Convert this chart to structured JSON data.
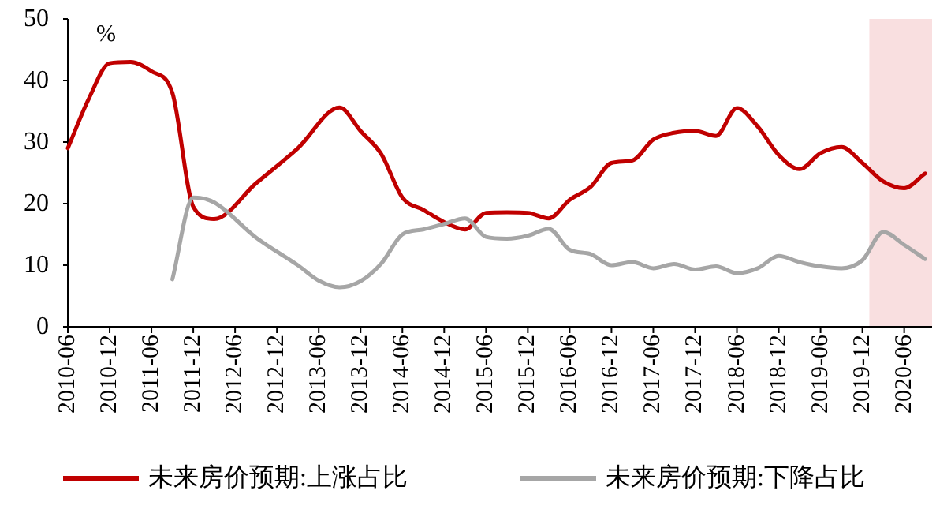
{
  "chart_data": {
    "type": "line",
    "ylabel": "%",
    "xlim": [
      "2010-06",
      "2020-10"
    ],
    "ylim": [
      0,
      50
    ],
    "yticks": [
      0,
      10,
      20,
      30,
      40,
      50
    ],
    "xticks": [
      "2010-06",
      "2010-12",
      "2011-06",
      "2011-12",
      "2012-06",
      "2012-12",
      "2013-06",
      "2013-12",
      "2014-06",
      "2014-12",
      "2015-06",
      "2015-12",
      "2016-06",
      "2016-12",
      "2017-06",
      "2017-12",
      "2018-06",
      "2018-12",
      "2019-06",
      "2019-12",
      "2020-06"
    ],
    "grid": false,
    "legend": "bottom",
    "line_style": "solid",
    "marker": "none",
    "bands": [
      {
        "axis": "x",
        "from": "2020-01",
        "to": "2020-10",
        "color": "#f9dfe0"
      }
    ],
    "series": [
      {
        "name": "未来房价预期:上涨占比",
        "color": "#c00000",
        "x": [
          "2010-06",
          "2010-09",
          "2010-12",
          "2011-03",
          "2011-06",
          "2011-09",
          "2011-12",
          "2012-03",
          "2012-09",
          "2013-03",
          "2013-09",
          "2013-12",
          "2014-03",
          "2014-06",
          "2014-09",
          "2014-12",
          "2015-03",
          "2015-06",
          "2015-09",
          "2015-12",
          "2016-03",
          "2016-06",
          "2016-09",
          "2016-12",
          "2017-03",
          "2017-06",
          "2017-09",
          "2017-12",
          "2018-03",
          "2018-06",
          "2018-09",
          "2018-12",
          "2019-03",
          "2019-06",
          "2019-09",
          "2019-12",
          "2020-03",
          "2020-06",
          "2020-09"
        ],
        "values": [
          29,
          37,
          42.8,
          43,
          41.5,
          38,
          19.5,
          17.5,
          23.3,
          29,
          35.6,
          31.8,
          28,
          21,
          19,
          17,
          15.8,
          18.5,
          18.6,
          18.5,
          17.6,
          20.6,
          22.7,
          26.6,
          27,
          30.4,
          31.5,
          31.8,
          31,
          35.5,
          32.5,
          27.9,
          25.6,
          28.2,
          29.2,
          26.6,
          23.6,
          22.5,
          24.9
        ]
      },
      {
        "name": "未来房价预期:下降占比",
        "color": "#a6a6a6",
        "x": [
          "2011-09",
          "2011-12",
          "2012-03",
          "2012-09",
          "2013-03",
          "2013-06",
          "2013-09",
          "2013-12",
          "2014-03",
          "2014-06",
          "2014-09",
          "2014-12",
          "2015-03",
          "2015-06",
          "2015-09",
          "2015-12",
          "2016-03",
          "2016-06",
          "2016-09",
          "2016-12",
          "2017-03",
          "2017-06",
          "2017-09",
          "2017-12",
          "2018-03",
          "2018-06",
          "2018-09",
          "2018-12",
          "2019-03",
          "2019-06",
          "2019-09",
          "2019-12",
          "2020-03",
          "2020-06",
          "2020-09"
        ],
        "values": [
          7.7,
          21,
          20.2,
          14.5,
          10,
          7.5,
          6.4,
          7.4,
          10.3,
          15,
          15.8,
          16.7,
          17.6,
          14.6,
          14.3,
          14.8,
          15.9,
          12.5,
          11.8,
          10,
          10.5,
          9.5,
          10.2,
          9.3,
          9.8,
          8.7,
          9.5,
          11.5,
          10.5,
          9.8,
          9.5,
          10.8,
          15.4,
          13.3,
          11
        ]
      }
    ]
  }
}
